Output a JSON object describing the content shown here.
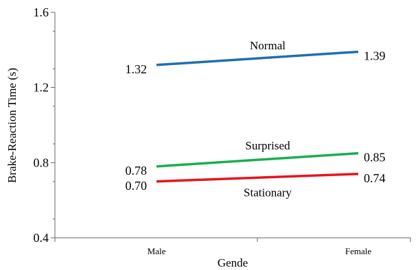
{
  "chart_data": {
    "type": "line",
    "title": "",
    "xlabel": "Gende",
    "ylabel": "Brake-Reaction Time (s)",
    "categories": [
      "Male",
      "Female"
    ],
    "ylim": [
      0.4,
      1.6
    ],
    "yticks": [
      "0.4",
      "0.8",
      "1.2",
      "1.6"
    ],
    "grid": false,
    "legend": "none",
    "series": [
      {
        "name": "Normal",
        "values": [
          1.32,
          1.39
        ],
        "value_labels": [
          "1.32",
          "1.39"
        ],
        "color": "#1f6fb4"
      },
      {
        "name": "Surprised",
        "values": [
          0.78,
          0.85
        ],
        "value_labels": [
          "0.78",
          "0.85"
        ],
        "color": "#1aae4f"
      },
      {
        "name": "Stationary",
        "values": [
          0.7,
          0.74
        ],
        "value_labels": [
          "0.70",
          "0.74"
        ],
        "color": "#e8141b"
      }
    ]
  }
}
